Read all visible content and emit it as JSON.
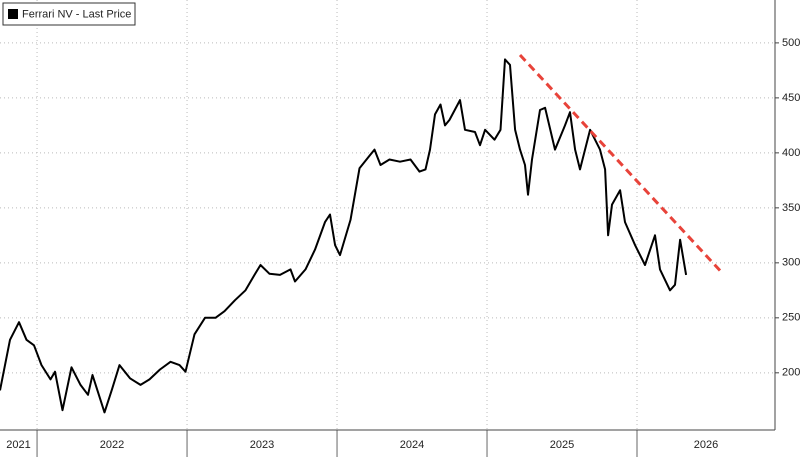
{
  "chart_data": {
    "type": "line",
    "x": [
      2021.753,
      2021.82,
      2021.88,
      2021.93,
      2021.98,
      2022.03,
      2022.09,
      2022.12,
      2022.17,
      2022.23,
      2022.29,
      2022.34,
      2022.37,
      2022.45,
      2022.5,
      2022.55,
      2022.62,
      2022.69,
      2022.75,
      2022.82,
      2022.89,
      2022.95,
      2022.99,
      2023.05,
      2023.12,
      2023.19,
      2023.25,
      2023.32,
      2023.39,
      2023.45,
      2023.49,
      2023.55,
      2023.62,
      2023.69,
      2023.72,
      2023.79,
      2023.853,
      2023.92,
      2023.953,
      2023.987,
      2024.02,
      2024.09,
      2024.15,
      2024.22,
      2024.25,
      2024.29,
      2024.35,
      2024.42,
      2024.49,
      2024.55,
      2024.59,
      2024.62,
      2024.653,
      2024.69,
      2024.72,
      2024.75,
      2024.82,
      2024.853,
      2024.92,
      2024.953,
      2024.987,
      2025.05,
      2025.09,
      2025.12,
      2025.153,
      2025.187,
      2025.22,
      2025.253,
      2025.273,
      2025.3,
      2025.353,
      2025.387,
      2025.453,
      2025.52,
      2025.553,
      2025.587,
      2025.62,
      2025.687,
      2025.753,
      2025.787,
      2025.807,
      2025.833,
      2025.887,
      2025.92,
      2025.987,
      2026.053,
      2026.12,
      2026.153,
      2026.22,
      2026.253,
      2026.287,
      2026.327
    ],
    "series": [
      {
        "name": "Ferrari NV - Last Price",
        "color": "#000000",
        "values": [
          184,
          230,
          246,
          230,
          225,
          207,
          194,
          201,
          166,
          205,
          189,
          180,
          198,
          164,
          185,
          207,
          195,
          189,
          194,
          203,
          210,
          207,
          201,
          235,
          250,
          250,
          256,
          266,
          275,
          289,
          298,
          290,
          289,
          294,
          283,
          294,
          312,
          337,
          344,
          316,
          307,
          339,
          386,
          398,
          403,
          389,
          394,
          392,
          394,
          383,
          385,
          403,
          435,
          444,
          425,
          430,
          448,
          421,
          419,
          407,
          421,
          412,
          421,
          485,
          480,
          421,
          403,
          389,
          362,
          394,
          439,
          441,
          403,
          425,
          437,
          403,
          385,
          421,
          403,
          385,
          325,
          353,
          366,
          337,
          316,
          298,
          325,
          294,
          275,
          280,
          321,
          289
        ]
      }
    ],
    "trendline": {
      "x": [
        2025.22,
        2026.567
      ],
      "y": [
        489,
        291
      ],
      "color": "#e8433a"
    },
    "xlim": [
      2021.753,
      2026.92
    ],
    "xticks": [
      2021,
      2022,
      2023,
      2024,
      2025,
      2026
    ],
    "ylim": [
      148,
      539
    ],
    "yticks": [
      200,
      250,
      300,
      350,
      400,
      450,
      500
    ],
    "grid": true
  }
}
